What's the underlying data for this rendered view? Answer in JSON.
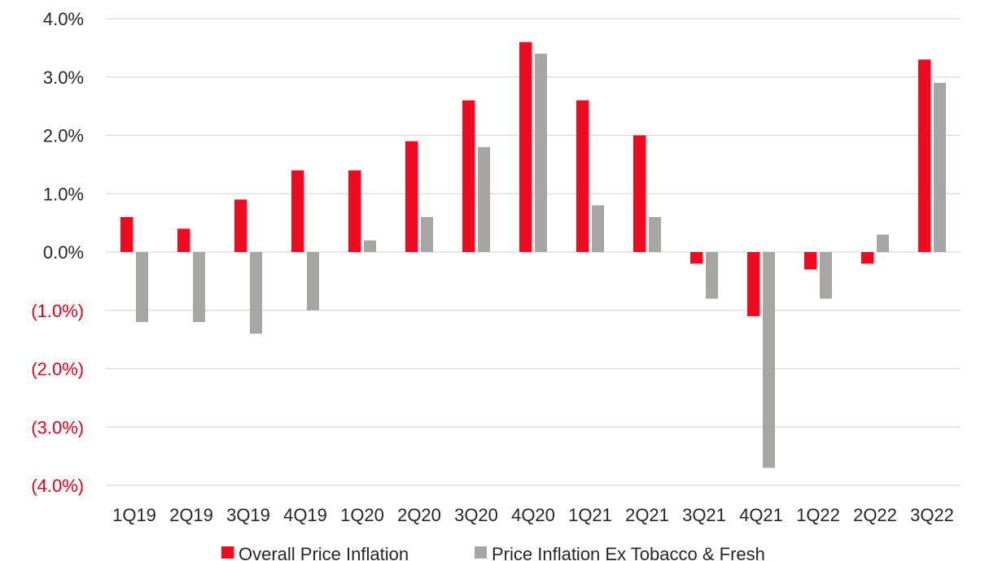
{
  "chart_data": {
    "type": "bar",
    "title": "",
    "xlabel": "",
    "ylabel": "",
    "ylim": [
      -0.04,
      0.04
    ],
    "grid": true,
    "legend_position": "bottom",
    "categories": [
      "1Q19",
      "2Q19",
      "3Q19",
      "4Q19",
      "1Q20",
      "2Q20",
      "3Q20",
      "4Q20",
      "1Q21",
      "2Q21",
      "3Q21",
      "4Q21",
      "1Q22",
      "2Q22",
      "3Q22"
    ],
    "y_ticks": [
      {
        "value": 0.04,
        "label": "4.0%",
        "color": "#262626"
      },
      {
        "value": 0.03,
        "label": "3.0%",
        "color": "#262626"
      },
      {
        "value": 0.02,
        "label": "2.0%",
        "color": "#262626"
      },
      {
        "value": 0.01,
        "label": "1.0%",
        "color": "#262626"
      },
      {
        "value": 0.0,
        "label": "0.0%",
        "color": "#262626"
      },
      {
        "value": -0.01,
        "label": "(1.0%)",
        "color": "#e8001c"
      },
      {
        "value": -0.02,
        "label": "(2.0%)",
        "color": "#e8001c"
      },
      {
        "value": -0.03,
        "label": "(3.0%)",
        "color": "#e8001c"
      },
      {
        "value": -0.04,
        "label": "(4.0%)",
        "color": "#e8001c"
      }
    ],
    "series": [
      {
        "name": "Overall Price Inflation",
        "color": "#ee0a1f",
        "values": [
          0.006,
          0.004,
          0.009,
          0.014,
          0.014,
          0.019,
          0.026,
          0.036,
          0.026,
          0.02,
          -0.002,
          -0.011,
          -0.003,
          -0.002,
          0.033
        ]
      },
      {
        "name": "Price Inflation Ex Tobacco & Fresh",
        "color": "#a8a5a5",
        "values": [
          -0.012,
          -0.012,
          -0.014,
          -0.01,
          0.002,
          0.006,
          0.018,
          0.034,
          0.008,
          0.006,
          -0.008,
          -0.037,
          -0.008,
          0.003,
          0.029
        ]
      }
    ]
  }
}
